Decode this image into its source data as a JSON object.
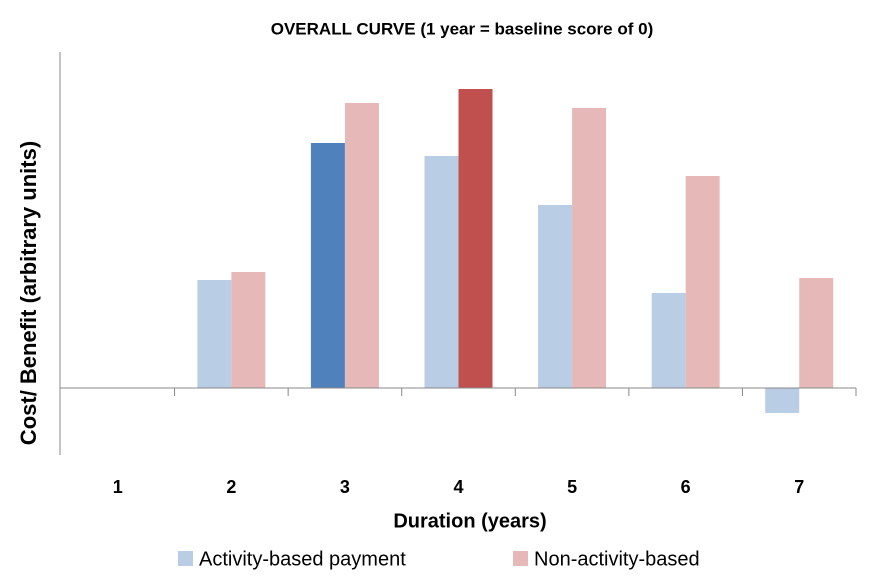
{
  "chart_data": {
    "type": "bar",
    "title": "OVERALL CURVE (1 year = baseline score of 0)",
    "x_label": "Duration (years)",
    "y_label": "Cost/ Benefit (arbitrary units)",
    "categories": [
      "1",
      "2",
      "3",
      "4",
      "5",
      "6",
      "7"
    ],
    "series": [
      {
        "name": "Activity-based payment",
        "color": "#b9cde5",
        "colors": [
          "#b9cde5",
          "#b9cde5",
          "#4f81bd",
          "#b9cde5",
          "#b9cde5",
          "#b9cde5",
          "#b9cde5"
        ],
        "values": [
          0,
          10.8,
          24.5,
          23.2,
          18.3,
          9.5,
          -2.5
        ]
      },
      {
        "name": "Non-activity-based",
        "color": "#e6b9b8",
        "colors": [
          "#e6b9b8",
          "#e6b9b8",
          "#e6b9b8",
          "#c0504d",
          "#e6b9b8",
          "#e6b9b8",
          "#e6b9b8"
        ],
        "values": [
          0,
          11.6,
          28.5,
          29.9,
          28,
          21.2,
          11
        ]
      }
    ],
    "ylim": [
      -6.7,
      33.6
    ],
    "legend": "bottom"
  }
}
